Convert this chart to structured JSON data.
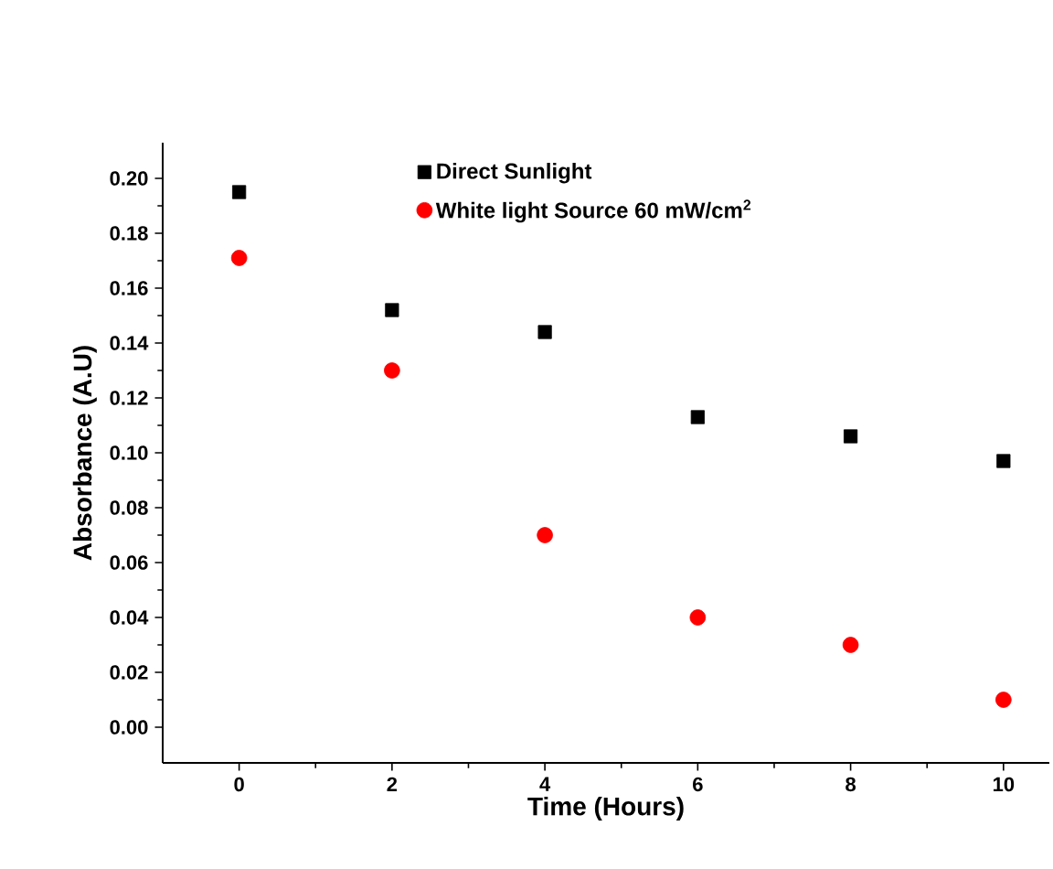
{
  "chart_data": {
    "type": "scatter",
    "xlabel": "Time (Hours)",
    "ylabel": "Absorbance (A.U)",
    "x": [
      0,
      2,
      4,
      6,
      8,
      10
    ],
    "series": [
      {
        "name": "Direct Sunlight",
        "color": "#000000",
        "marker": "square",
        "values": [
          0.195,
          0.152,
          0.144,
          0.113,
          0.106,
          0.097
        ]
      },
      {
        "name": "White light Source 60 mW/cm$^{2}$",
        "color": "#ff0000",
        "marker": "circle",
        "values": [
          0.171,
          0.13,
          0.07,
          0.04,
          0.03,
          0.01
        ]
      }
    ],
    "xlim": [
      -1,
      10.6
    ],
    "ylim": [
      -0.013,
      0.213
    ],
    "xticks": [
      0,
      2,
      4,
      6,
      8,
      10
    ],
    "yticks": [
      {
        "value": 0,
        "label": "0.00"
      },
      {
        "value": 0.02,
        "label": "0.02"
      },
      {
        "value": 0.04,
        "label": "0.04"
      },
      {
        "value": 0.06,
        "label": "0.06"
      },
      {
        "value": 0.08,
        "label": "0.08"
      },
      {
        "value": 0.1,
        "label": "0.10"
      },
      {
        "value": 0.12,
        "label": "0.12"
      },
      {
        "value": 0.14,
        "label": "0.14"
      },
      {
        "value": 0.16,
        "label": "0.16"
      },
      {
        "value": 0.18,
        "label": "0.18"
      },
      {
        "value": 0.2,
        "label": "0.20"
      }
    ],
    "legend": "top right",
    "grid": false
  }
}
